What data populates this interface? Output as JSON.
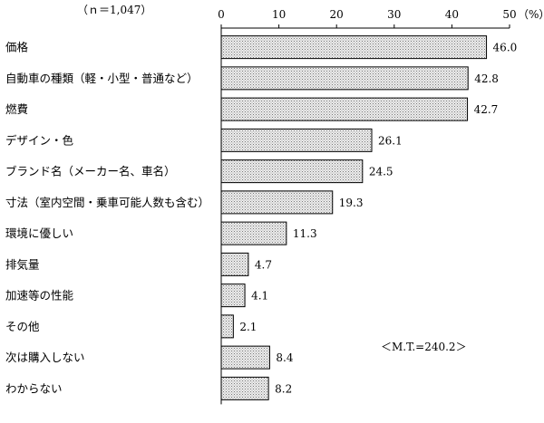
{
  "chart_data": {
    "type": "bar",
    "orientation": "horizontal",
    "sample_size": "（ｎ＝1,047）",
    "unit": "（%）",
    "note": "＜M.T.=240.2＞",
    "xlim": [
      0,
      50
    ],
    "x_ticks": [
      {
        "value": 0,
        "label": "0"
      },
      {
        "value": 10,
        "label": "10"
      },
      {
        "value": 20,
        "label": "20"
      },
      {
        "value": 30,
        "label": "30"
      },
      {
        "value": 40,
        "label": "40"
      },
      {
        "value": 50,
        "label": "50"
      }
    ],
    "categories": [
      "価格",
      "自動車の種類（軽・小型・普通など）",
      "燃費",
      "デザイン・色",
      "ブランド名（メーカー名、車名）",
      "寸法（室内空間・乗車可能人数も含む）",
      "環境に優しい",
      "排気量",
      "加速等の性能",
      "その他",
      "次は購入しない",
      "わからない"
    ],
    "values": [
      46.0,
      42.8,
      42.7,
      26.1,
      24.5,
      19.3,
      11.3,
      4.7,
      4.1,
      2.1,
      8.4,
      8.2
    ],
    "value_labels": [
      "46.0",
      "42.8",
      "42.7",
      "26.1",
      "24.5",
      "19.3",
      "11.3",
      "4.7",
      "4.1",
      "2.1",
      "8.4",
      "8.2"
    ],
    "bar_fill": "dotted-gray",
    "bar_stroke": "#000000",
    "grid": false,
    "legend": "none"
  }
}
